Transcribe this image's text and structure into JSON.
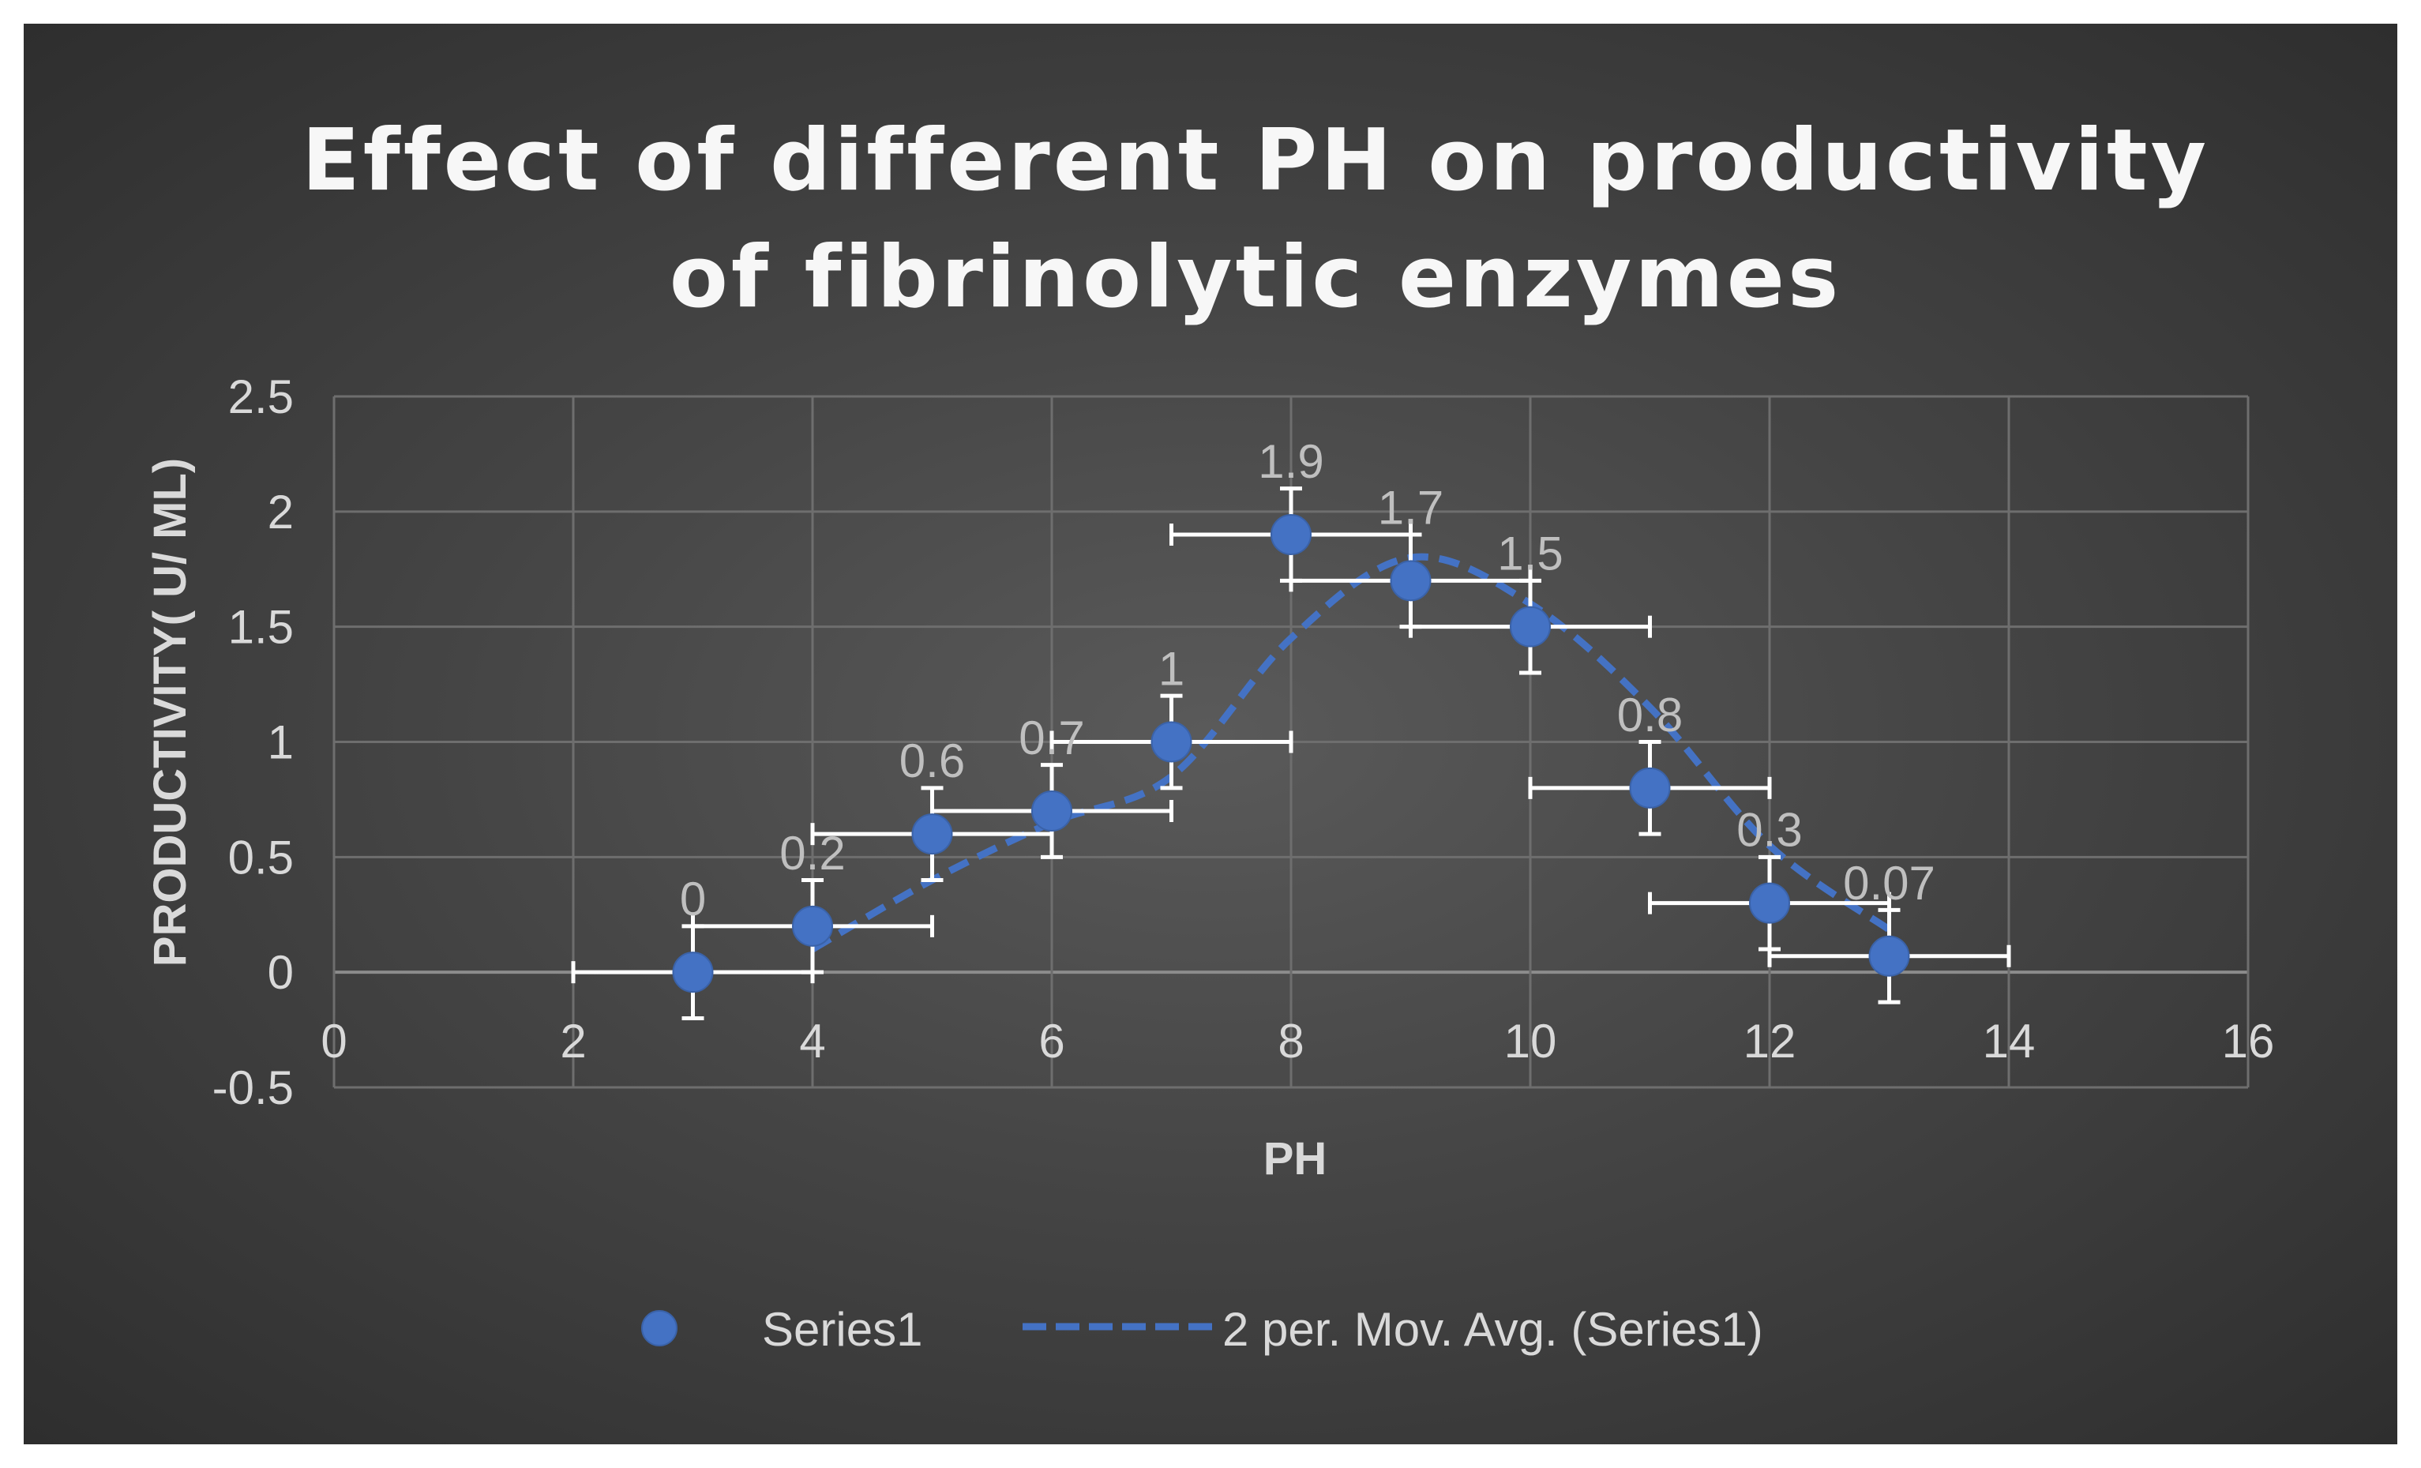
{
  "chart_data": {
    "type": "scatter",
    "title_lines": [
      "Effect of different PH on productivity",
      "of fibrinolytic enzymes"
    ],
    "xlabel": "PH",
    "ylabel": "PRODUCTIVITY( U/ ML)",
    "xlim": [
      0,
      16
    ],
    "ylim": [
      -0.5,
      2.5
    ],
    "x_ticks": [
      "0",
      "2",
      "4",
      "6",
      "8",
      "10",
      "12",
      "14",
      "16"
    ],
    "y_ticks": [
      "-0.5",
      "0",
      "0.5",
      "1",
      "1.5",
      "2",
      "2.5"
    ],
    "grid": true,
    "legend_position": "bottom",
    "series": [
      {
        "name": "Series1",
        "color": "#4472c4",
        "x": [
          3,
          4,
          5,
          6,
          7,
          8,
          9,
          10,
          11,
          12,
          13
        ],
        "y": [
          0,
          0.2,
          0.6,
          0.7,
          1,
          1.9,
          1.7,
          1.5,
          0.8,
          0.3,
          0.07
        ],
        "data_labels": [
          "0",
          "0.2",
          "0.6",
          "0.7",
          "1",
          "1.9",
          "1.7",
          "1.5",
          "0.8",
          "0.3",
          "0.07"
        ],
        "x_error": 1,
        "y_error": 0.2
      }
    ],
    "trendline": {
      "name": "2 per. Mov. Avg. (Series1)",
      "type": "moving-average",
      "period": 2,
      "color": "#4472c4",
      "style": "dashed"
    }
  }
}
